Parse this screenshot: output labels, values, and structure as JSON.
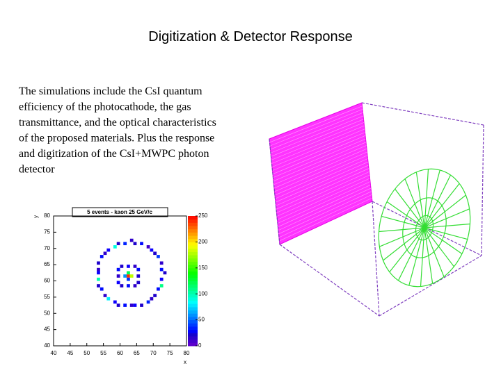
{
  "slide": {
    "title": "Digitization & Detector Response",
    "body_lines": [
      "The simulations include the CsI quantum",
      "efficiency of the photocathode, the gas",
      "transmittance, and the optical characteristics",
      "of the proposed materials. Plus the response",
      "and digitization of the CsI+MWPC photon",
      "detector"
    ]
  },
  "chart_data": {
    "type": "heatmap",
    "title": "5 events - kaon 25 GeV/c",
    "xlabel": "x",
    "ylabel": "y",
    "xlim": [
      40,
      80
    ],
    "ylim": [
      40,
      80
    ],
    "zlim": [
      0,
      250
    ],
    "xticks": [
      40,
      45,
      50,
      55,
      60,
      65,
      70,
      75,
      80
    ],
    "yticks": [
      40,
      45,
      50,
      55,
      60,
      65,
      70,
      75,
      80
    ],
    "zticks": [
      0,
      50,
      100,
      150,
      200,
      250
    ],
    "cells": [
      [
        73,
        62,
        20
      ],
      [
        72,
        63,
        30
      ],
      [
        72,
        65,
        15
      ],
      [
        71,
        67,
        40
      ],
      [
        70,
        68,
        20
      ],
      [
        69,
        69,
        25
      ],
      [
        68,
        70,
        10
      ],
      [
        66,
        71,
        30
      ],
      [
        64,
        71,
        20
      ],
      [
        63,
        72,
        15
      ],
      [
        61,
        71,
        35
      ],
      [
        59,
        71,
        20
      ],
      [
        58,
        70,
        90
      ],
      [
        56,
        69,
        25
      ],
      [
        55,
        68,
        15
      ],
      [
        54,
        67,
        30
      ],
      [
        53,
        65,
        20
      ],
      [
        53,
        63,
        15
      ],
      [
        53,
        62,
        25
      ],
      [
        53,
        60,
        100
      ],
      [
        53,
        58,
        20
      ],
      [
        54,
        57,
        30
      ],
      [
        55,
        55,
        15
      ],
      [
        56,
        54,
        80
      ],
      [
        58,
        53,
        25
      ],
      [
        59,
        52,
        20
      ],
      [
        61,
        52,
        30
      ],
      [
        63,
        52,
        15
      ],
      [
        64,
        52,
        25
      ],
      [
        66,
        52,
        20
      ],
      [
        68,
        53,
        35
      ],
      [
        69,
        54,
        15
      ],
      [
        70,
        55,
        20
      ],
      [
        71,
        57,
        30
      ],
      [
        72,
        58,
        110
      ],
      [
        72,
        60,
        25
      ],
      [
        65,
        61,
        20
      ],
      [
        65,
        63,
        30
      ],
      [
        64,
        64,
        15
      ],
      [
        62,
        64,
        25
      ],
      [
        60,
        64,
        20
      ],
      [
        59,
        63,
        30
      ],
      [
        59,
        61,
        15
      ],
      [
        59,
        59,
        25
      ],
      [
        60,
        58,
        20
      ],
      [
        62,
        58,
        30
      ],
      [
        64,
        58,
        15
      ],
      [
        65,
        59,
        20
      ],
      [
        62,
        61,
        240
      ],
      [
        63,
        61,
        180
      ],
      [
        61,
        61,
        60
      ],
      [
        62,
        62,
        120
      ],
      [
        62,
        60,
        40
      ]
    ]
  }
}
